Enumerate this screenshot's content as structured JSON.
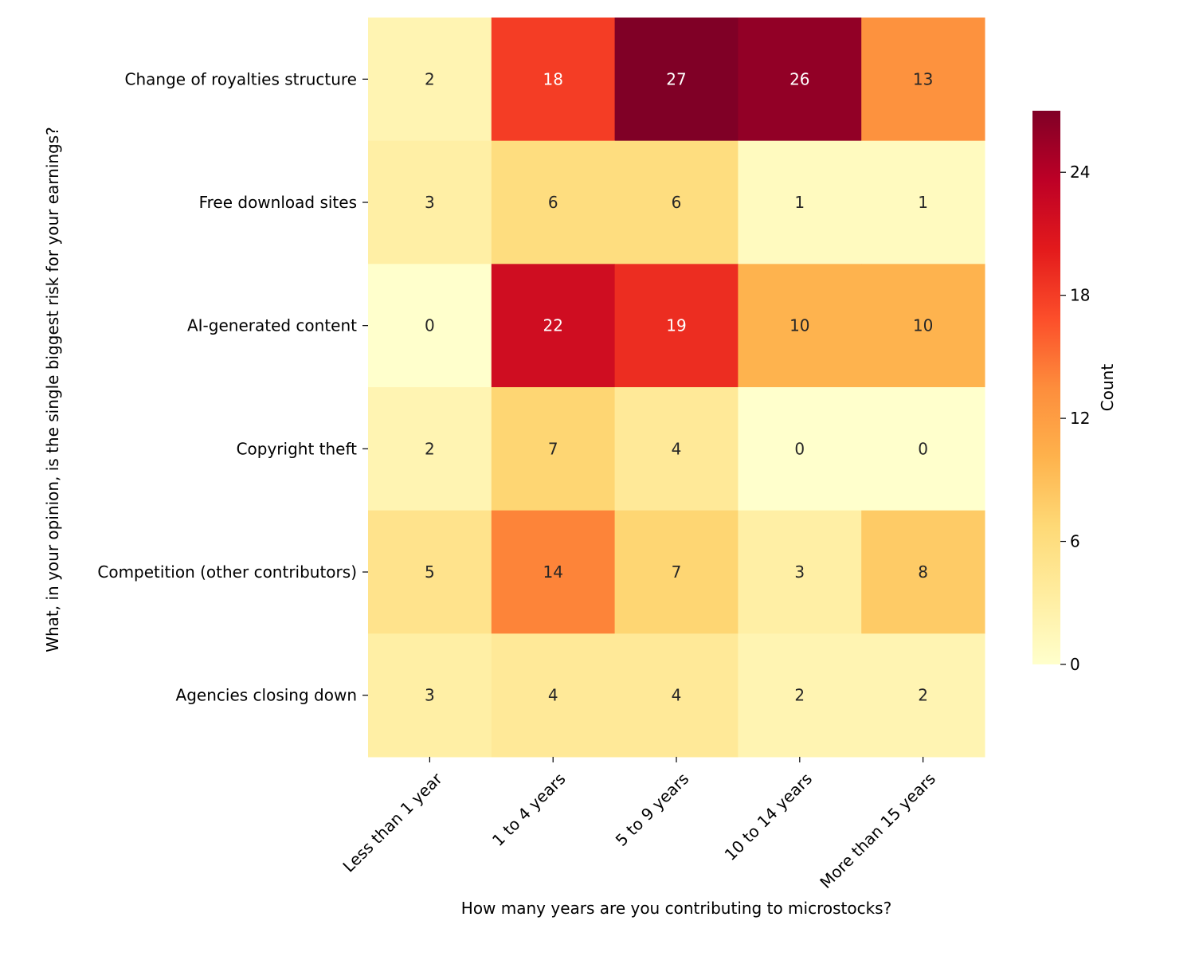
{
  "chart_data": {
    "type": "heatmap",
    "title": "",
    "xlabel": "How many years are you contributing to microstocks?",
    "ylabel": "What, in your opinion, is the single biggest risk for your earnings?",
    "x_categories": [
      "Less than 1 year",
      "1 to 4 years",
      "5 to 9 years",
      "10 to 14 years",
      "More than 15 years"
    ],
    "y_categories": [
      "Change of royalties structure",
      "Free download sites",
      "AI-generated content",
      "Copyright theft",
      "Competition (other contributors)",
      "Agencies closing down"
    ],
    "values": [
      [
        2,
        18,
        27,
        26,
        13
      ],
      [
        3,
        6,
        6,
        1,
        1
      ],
      [
        0,
        22,
        19,
        10,
        10
      ],
      [
        2,
        7,
        4,
        0,
        0
      ],
      [
        5,
        14,
        7,
        3,
        8
      ],
      [
        3,
        4,
        4,
        2,
        2
      ]
    ],
    "colorbar": {
      "label": "Count",
      "range": [
        0,
        27
      ],
      "ticks": [
        0,
        6,
        12,
        18,
        24
      ],
      "colormap": "YlOrRd"
    }
  }
}
